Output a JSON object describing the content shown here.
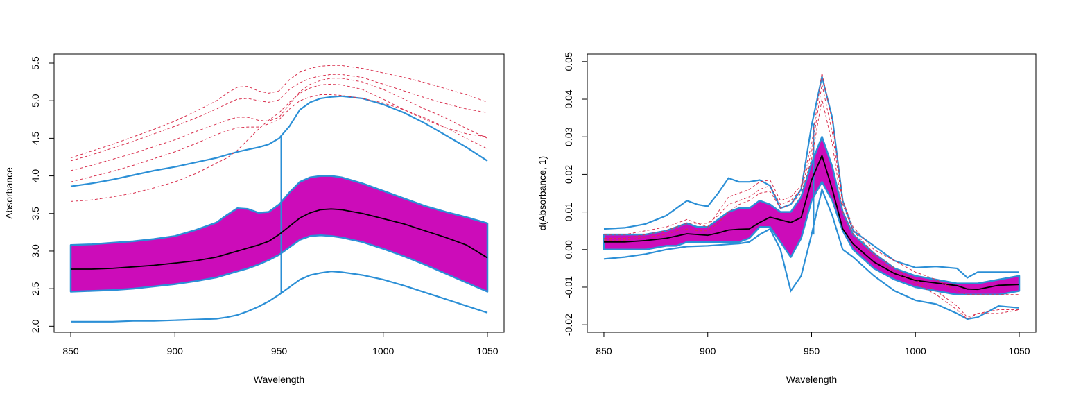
{
  "chart_data": [
    {
      "type": "line",
      "title": "",
      "xlabel": "Wavelength",
      "ylabel": "Absorbance",
      "xlim": [
        842,
        1058
      ],
      "ylim": [
        1.92,
        5.62
      ],
      "xticks": [
        850,
        900,
        950,
        1000,
        1050
      ],
      "xtick_labels": [
        "850",
        "900",
        "950",
        "1000",
        "1050"
      ],
      "yticks": [
        2.0,
        2.5,
        3.0,
        3.5,
        4.0,
        4.5,
        5.0,
        5.5
      ],
      "ytick_labels": [
        "2.0",
        "2.5",
        "3.0",
        "3.5",
        "4.0",
        "4.5",
        "5.0",
        "5.5"
      ],
      "grid": false,
      "x": [
        850,
        860,
        870,
        880,
        890,
        900,
        910,
        920,
        925,
        930,
        935,
        940,
        945,
        950,
        955,
        960,
        965,
        970,
        975,
        980,
        990,
        1000,
        1010,
        1020,
        1030,
        1040,
        1050
      ],
      "band": {
        "fill": "#cc0cb9",
        "edge": "#2b8fd6",
        "upper": [
          3.08,
          3.09,
          3.11,
          3.13,
          3.16,
          3.2,
          3.28,
          3.38,
          3.48,
          3.57,
          3.56,
          3.51,
          3.52,
          3.62,
          3.78,
          3.92,
          3.98,
          4.0,
          4.0,
          3.98,
          3.9,
          3.8,
          3.7,
          3.6,
          3.52,
          3.45,
          3.37
        ],
        "lower": [
          2.46,
          2.47,
          2.48,
          2.5,
          2.53,
          2.56,
          2.6,
          2.65,
          2.69,
          2.73,
          2.77,
          2.82,
          2.88,
          2.95,
          3.05,
          3.15,
          3.2,
          3.21,
          3.2,
          3.18,
          3.12,
          3.03,
          2.93,
          2.82,
          2.7,
          2.58,
          2.46
        ]
      },
      "fence": {
        "color": "#2b8fd6",
        "upper": [
          3.86,
          3.9,
          3.95,
          4.01,
          4.07,
          4.12,
          4.18,
          4.24,
          4.28,
          4.32,
          4.35,
          4.38,
          4.42,
          4.5,
          4.66,
          4.88,
          4.98,
          5.03,
          5.05,
          5.06,
          5.03,
          4.95,
          4.84,
          4.7,
          4.54,
          4.38,
          4.2
        ],
        "lower": [
          2.06,
          2.06,
          2.06,
          2.07,
          2.07,
          2.08,
          2.09,
          2.1,
          2.12,
          2.15,
          2.2,
          2.26,
          2.33,
          2.42,
          2.52,
          2.62,
          2.68,
          2.71,
          2.73,
          2.72,
          2.68,
          2.62,
          2.54,
          2.45,
          2.36,
          2.27,
          2.18
        ],
        "whisker_x": 951,
        "whisker_from": 2.44,
        "whisker_to": 4.53
      },
      "median": {
        "color": "#000000",
        "values": [
          2.76,
          2.76,
          2.77,
          2.79,
          2.81,
          2.84,
          2.87,
          2.92,
          2.96,
          3.0,
          3.04,
          3.08,
          3.13,
          3.22,
          3.33,
          3.44,
          3.51,
          3.55,
          3.56,
          3.55,
          3.5,
          3.43,
          3.36,
          3.27,
          3.18,
          3.08,
          2.91
        ]
      },
      "outliers": {
        "color": "#d9304e",
        "style": "dashed",
        "series": [
          [
            4.24,
            4.33,
            4.42,
            4.52,
            4.62,
            4.73,
            4.86,
            5.0,
            5.1,
            5.18,
            5.19,
            5.13,
            5.1,
            5.13,
            5.28,
            5.38,
            5.43,
            5.46,
            5.47,
            5.47,
            5.43,
            5.37,
            5.31,
            5.24,
            5.16,
            5.08,
            4.98
          ],
          [
            4.2,
            4.28,
            4.37,
            4.46,
            4.56,
            4.66,
            4.77,
            4.89,
            4.96,
            5.02,
            5.03,
            5.0,
            4.98,
            5.01,
            5.15,
            5.24,
            5.3,
            5.33,
            5.35,
            5.35,
            5.31,
            5.22,
            5.13,
            5.04,
            4.96,
            4.89,
            4.84
          ],
          [
            4.07,
            4.14,
            4.22,
            4.3,
            4.39,
            4.48,
            4.59,
            4.69,
            4.74,
            4.78,
            4.78,
            4.74,
            4.73,
            4.78,
            4.95,
            5.12,
            5.22,
            5.27,
            5.3,
            5.3,
            5.25,
            5.15,
            5.02,
            4.89,
            4.77,
            4.63,
            4.5
          ],
          [
            3.92,
            3.99,
            4.06,
            4.14,
            4.23,
            4.32,
            4.43,
            4.55,
            4.6,
            4.64,
            4.65,
            4.65,
            4.69,
            4.75,
            4.89,
            5.0,
            5.05,
            5.08,
            5.08,
            5.07,
            5.03,
            4.97,
            4.88,
            4.77,
            4.64,
            4.5,
            4.36
          ],
          [
            3.66,
            3.68,
            3.72,
            3.77,
            3.84,
            3.92,
            4.03,
            4.17,
            4.24,
            4.34,
            4.48,
            4.62,
            4.74,
            4.84,
            4.98,
            5.1,
            5.17,
            5.21,
            5.22,
            5.21,
            5.15,
            5.02,
            4.88,
            4.75,
            4.64,
            4.56,
            4.52
          ]
        ]
      }
    },
    {
      "type": "line",
      "title": "",
      "xlabel": "Wavelength",
      "ylabel": "d(Absorbance, 1)",
      "xlim": [
        842,
        1058
      ],
      "ylim": [
        -0.022,
        0.052
      ],
      "xticks": [
        850,
        900,
        950,
        1000,
        1050
      ],
      "xtick_labels": [
        "850",
        "900",
        "950",
        "1000",
        "1050"
      ],
      "yticks": [
        -0.02,
        -0.01,
        0.0,
        0.01,
        0.02,
        0.03,
        0.04,
        0.05
      ],
      "ytick_labels": [
        "-0.02",
        "-0.01",
        "0.00",
        "0.01",
        "0.02",
        "0.03",
        "0.04",
        "0.05"
      ],
      "grid": false,
      "x": [
        850,
        860,
        870,
        880,
        885,
        890,
        895,
        900,
        905,
        910,
        915,
        920,
        925,
        930,
        935,
        940,
        945,
        950,
        955,
        960,
        965,
        970,
        980,
        990,
        1000,
        1010,
        1020,
        1025,
        1030,
        1040,
        1050
      ],
      "band": {
        "fill": "#cc0cb9",
        "edge": "#2b8fd6",
        "upper": [
          0.004,
          0.004,
          0.004,
          0.005,
          0.006,
          0.007,
          0.006,
          0.006,
          0.008,
          0.01,
          0.011,
          0.011,
          0.013,
          0.012,
          0.01,
          0.01,
          0.014,
          0.023,
          0.03,
          0.022,
          0.01,
          0.004,
          -0.001,
          -0.005,
          -0.007,
          -0.008,
          -0.009,
          -0.009,
          -0.009,
          -0.008,
          -0.007
        ],
        "lower": [
          0.0,
          0.0,
          0.0,
          0.001,
          0.001,
          0.002,
          0.002,
          0.002,
          0.002,
          0.002,
          0.002,
          0.003,
          0.006,
          0.006,
          0.002,
          -0.002,
          0.003,
          0.013,
          0.018,
          0.013,
          0.005,
          0.0,
          -0.005,
          -0.008,
          -0.01,
          -0.011,
          -0.012,
          -0.012,
          -0.012,
          -0.012,
          -0.011
        ]
      },
      "fence": {
        "color": "#2b8fd6",
        "upper": [
          0.0055,
          0.0058,
          0.0068,
          0.009,
          0.011,
          0.013,
          0.012,
          0.0115,
          0.015,
          0.019,
          0.018,
          0.018,
          0.0185,
          0.017,
          0.011,
          0.012,
          0.016,
          0.033,
          0.046,
          0.035,
          0.013,
          0.005,
          0.001,
          -0.003,
          -0.0048,
          -0.0045,
          -0.005,
          -0.0075,
          -0.006,
          -0.006,
          -0.006
        ],
        "lower": [
          -0.0025,
          -0.002,
          -0.0012,
          0.0,
          0.0004,
          0.0008,
          0.0009,
          0.001,
          0.0012,
          0.0014,
          0.0016,
          0.002,
          0.004,
          0.0055,
          0.0,
          -0.011,
          -0.007,
          0.004,
          0.016,
          0.009,
          0.0,
          -0.002,
          -0.007,
          -0.011,
          -0.0135,
          -0.0145,
          -0.017,
          -0.0185,
          -0.018,
          -0.015,
          -0.0155
        ],
        "whisker_x": 951,
        "whisker_from": 0.004,
        "whisker_to": 0.0335
      },
      "median": {
        "color": "#000000",
        "values": [
          0.002,
          0.002,
          0.0024,
          0.003,
          0.0036,
          0.0042,
          0.004,
          0.0038,
          0.0044,
          0.0052,
          0.0054,
          0.0055,
          0.0072,
          0.0086,
          0.0079,
          0.0072,
          0.0085,
          0.0185,
          0.025,
          0.016,
          0.0055,
          0.0015,
          -0.0033,
          -0.0064,
          -0.0082,
          -0.0089,
          -0.0096,
          -0.0105,
          -0.0106,
          -0.0095,
          -0.0093
        ]
      },
      "outliers": {
        "color": "#d9304e",
        "style": "dashed",
        "series": [
          [
            0.004,
            0.004,
            0.005,
            0.006,
            0.007,
            0.008,
            0.007,
            0.006,
            0.01,
            0.014,
            0.015,
            0.016,
            0.018,
            0.0185,
            0.013,
            0.014,
            0.017,
            0.028,
            0.047,
            0.034,
            0.013,
            0.006,
            0.0,
            -0.003,
            -0.006,
            -0.008,
            -0.011,
            -0.012,
            -0.012,
            -0.012,
            -0.012
          ],
          [
            0.003,
            0.003,
            0.004,
            0.005,
            0.006,
            0.007,
            0.007,
            0.007,
            0.009,
            0.012,
            0.013,
            0.014,
            0.016,
            0.017,
            0.012,
            0.013,
            0.016,
            0.026,
            0.044,
            0.031,
            0.012,
            0.005,
            -0.001,
            -0.005,
            -0.008,
            -0.011,
            -0.015,
            -0.018,
            -0.017,
            -0.016,
            -0.016
          ],
          [
            0.0025,
            0.0025,
            0.0033,
            0.004,
            0.005,
            0.0055,
            0.005,
            0.005,
            0.007,
            0.01,
            0.012,
            0.013,
            0.015,
            0.0155,
            0.011,
            0.012,
            0.015,
            0.024,
            0.04,
            0.028,
            0.01,
            0.004,
            -0.002,
            -0.006,
            -0.009,
            -0.012,
            -0.016,
            -0.0185,
            -0.017,
            -0.017,
            -0.016
          ]
        ]
      }
    }
  ]
}
